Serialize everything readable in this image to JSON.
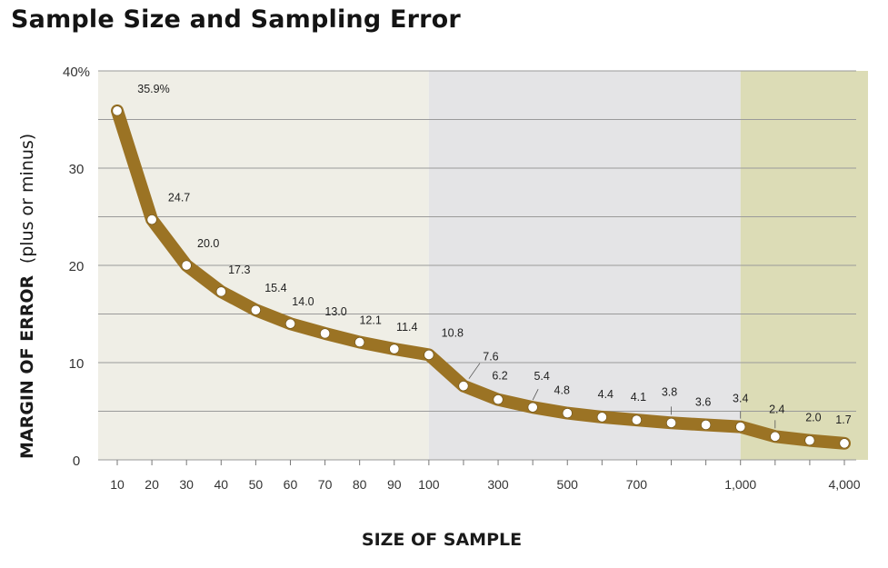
{
  "chart_data": {
    "type": "line",
    "title": "Sample Size and Sampling Error",
    "ylabel": "MARGIN OF ERROR",
    "ylabel_suffix": "(plus or minus)",
    "xlabel": "SIZE OF SAMPLE",
    "ylim": [
      0,
      40
    ],
    "y_ticks": [
      "0",
      "10",
      "20",
      "30",
      "40%"
    ],
    "x_ticks": [
      "10",
      "20",
      "30",
      "40",
      "50",
      "60",
      "70",
      "80",
      "90",
      "100",
      "",
      "300",
      "",
      "500",
      "",
      "700",
      "",
      "",
      "1,000",
      "",
      "",
      "4,000"
    ],
    "categories": [
      "10",
      "20",
      "30",
      "40",
      "50",
      "60",
      "70",
      "80",
      "90",
      "100",
      "200",
      "300",
      "400",
      "500",
      "600",
      "700",
      "800",
      "900",
      "1000",
      "2000",
      "3000",
      "4000"
    ],
    "values": [
      35.9,
      24.7,
      20.0,
      17.3,
      15.4,
      14.0,
      13.0,
      12.1,
      11.4,
      10.8,
      7.6,
      6.2,
      5.4,
      4.8,
      4.4,
      4.1,
      3.8,
      3.6,
      3.4,
      2.4,
      2.0,
      1.7
    ],
    "labels": [
      "35.9%",
      "24.7",
      "20.0",
      "17.3",
      "15.4",
      "14.0",
      "13.0",
      "12.1",
      "11.4",
      "10.8",
      "7.6",
      "6.2",
      "5.4",
      "4.8",
      "4.4",
      "4.1",
      "3.8",
      "3.6",
      "3.4",
      "2.4",
      "2.0",
      "1.7"
    ],
    "grid": true,
    "background_bands": [
      {
        "from_index": 0,
        "to_index": 9,
        "color": "#efeee6"
      },
      {
        "from_index": 9,
        "to_index": 18,
        "color": "#e4e4e6"
      },
      {
        "from_index": 18,
        "to_index": 21,
        "color": "#dcdcb6"
      }
    ],
    "line_color": "#9b7324",
    "marker_color": "#ffffff"
  }
}
